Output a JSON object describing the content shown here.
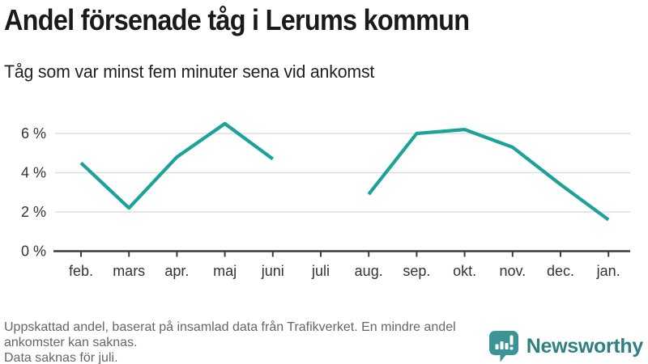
{
  "header": {
    "title": "Andel försenade tåg i Lerums kommun",
    "subtitle": "Tåg som var minst fem minuter sena vid ankomst"
  },
  "chart_data": {
    "type": "line",
    "title": "Andel försenade tåg i Lerums kommun",
    "subtitle": "Tåg som var minst fem minuter sena vid ankomst",
    "categories": [
      "feb.",
      "mars",
      "apr.",
      "maj",
      "juni",
      "juli",
      "aug.",
      "sep.",
      "okt.",
      "nov.",
      "dec.",
      "jan."
    ],
    "series": [
      {
        "name": "Andel försenade tåg (%)",
        "values": [
          4.5,
          2.2,
          4.8,
          6.5,
          4.7,
          null,
          2.9,
          6.0,
          6.2,
          5.3,
          3.4,
          1.6
        ]
      }
    ],
    "unit": "%",
    "y_ticks": [
      0,
      2,
      4,
      6
    ],
    "y_tick_labels": [
      "0 %",
      "2 %",
      "4 %",
      "6 %"
    ],
    "ylim": [
      0,
      6.9
    ],
    "grid": "horizontal-only",
    "legend": "none",
    "missing_data": "juli"
  },
  "footer": {
    "note1": "Uppskattad andel, baserat på insamlad data från Trafikverket. En mindre andel ankomster kan saknas.",
    "note2": "Data saknas för juli."
  },
  "logo": {
    "text": "Newsworthy",
    "icon": "newsworthy-speech-bubble-chart-icon"
  },
  "colors": {
    "line": "#1BA39A",
    "grid": "#DDDDDD",
    "axis": "#3C3C3C",
    "tick_labels": "#333333",
    "footer_text": "#666666",
    "logo_icon": "#3D9494",
    "logo_text": "#2F8080"
  }
}
